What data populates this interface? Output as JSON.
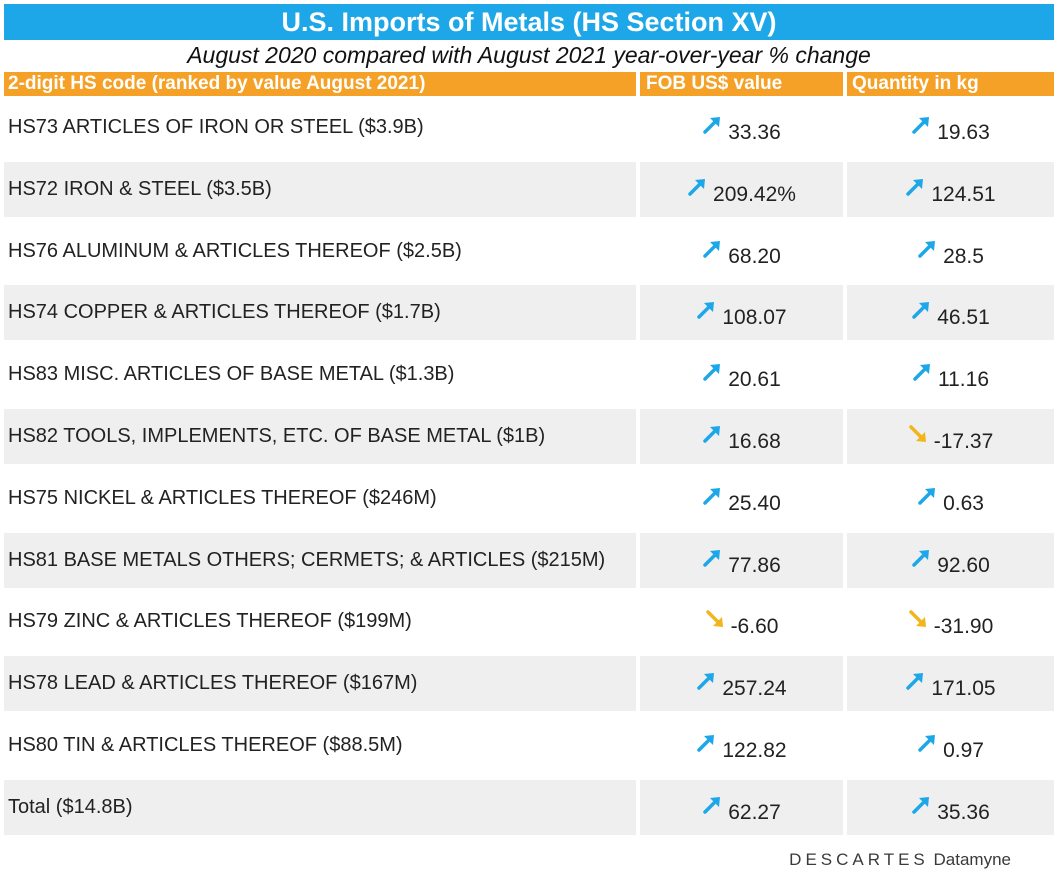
{
  "title": "U.S. Imports of Metals (HS Section XV)",
  "subtitle": "August 2020 compared with August 2021 year-over-year % change",
  "colors": {
    "title_bg": "#1ea7e8",
    "header_bg": "#f5a127",
    "up_arrow": "#1ea7e8",
    "down_arrow": "#f2b51c",
    "row_shade": "#efefef"
  },
  "chart_data": {
    "type": "table",
    "columns": [
      "2-digit HS code (ranked by value August 2021)",
      "FOB US$ value",
      "Quantity in kg"
    ],
    "rows": [
      {
        "label": "HS73  ARTICLES OF IRON OR STEEL ($3.9B)",
        "fob": "33.36",
        "fob_dir": "up",
        "qty": "19.63",
        "qty_dir": "up"
      },
      {
        "label": "HS72 IRON & STEEL ($3.5B)",
        "fob": "209.42%",
        "fob_dir": "up",
        "qty": "124.51",
        "qty_dir": "up"
      },
      {
        "label": "HS76  ALUMINUM & ARTICLES THEREOF ($2.5B)",
        "fob": "68.20",
        "fob_dir": "up",
        "qty": "28.5",
        "qty_dir": "up"
      },
      {
        "label": "HS74 COPPER & ARTICLES THEREOF ($1.7B)",
        "fob": "108.07",
        "fob_dir": "up",
        "qty": "46.51",
        "qty_dir": "up"
      },
      {
        "label": "HS83 MISC. ARTICLES OF BASE METAL ($1.3B)",
        "fob": "20.61",
        "fob_dir": "up",
        "qty": "11.16",
        "qty_dir": "up"
      },
      {
        "label": "HS82 TOOLS, IMPLEMENTS, ETC. OF BASE METAL ($1B)",
        "fob": "16.68",
        "fob_dir": "up",
        "qty": "-17.37",
        "qty_dir": "down"
      },
      {
        "label": "HS75 NICKEL & ARTICLES THEREOF ($246M)",
        "fob": "25.40",
        "fob_dir": "up",
        "qty": "0.63",
        "qty_dir": "up"
      },
      {
        "label": "HS81 BASE METALS OTHERS; CERMETS; & ARTICLES ($215M)",
        "fob": "77.86",
        "fob_dir": "up",
        "qty": "92.60",
        "qty_dir": "up"
      },
      {
        "label": "HS79 ZINC & ARTICLES THEREOF ($199M)",
        "fob": "-6.60",
        "fob_dir": "down",
        "qty": "-31.90",
        "qty_dir": "down"
      },
      {
        "label": "HS78 LEAD & ARTICLES THEREOF ($167M)",
        "fob": "257.24",
        "fob_dir": "up",
        "qty": "171.05",
        "qty_dir": "up"
      },
      {
        "label": "HS80 TIN & ARTICLES THEREOF ($88.5M)",
        "fob": "122.82",
        "fob_dir": "up",
        "qty": "0.97",
        "qty_dir": "up"
      },
      {
        "label": "Total ($14.8B)",
        "fob": "62.27",
        "fob_dir": "up",
        "qty": "35.36",
        "qty_dir": "up"
      }
    ]
  },
  "footer": {
    "brand": "DESCARTES",
    "product": "Datamyne"
  }
}
